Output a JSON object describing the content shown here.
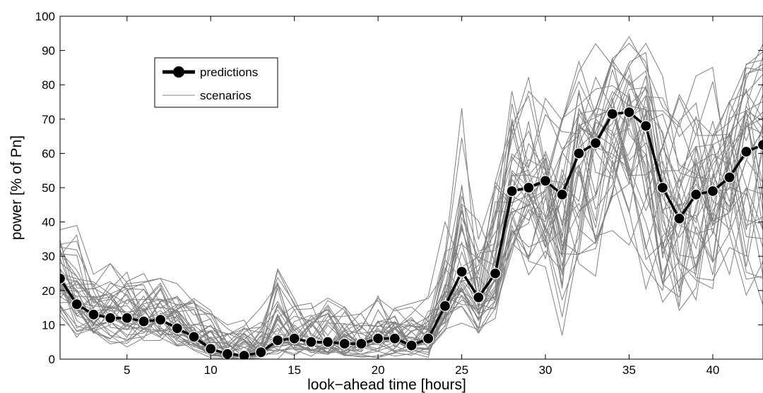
{
  "chart_data": {
    "type": "line",
    "xlabel": "look−ahead time [hours]",
    "ylabel": "power [% of Pn]",
    "xlim": [
      1,
      43
    ],
    "ylim": [
      0,
      100
    ],
    "xticks": [
      5,
      10,
      15,
      20,
      25,
      30,
      35,
      40
    ],
    "yticks": [
      0,
      10,
      20,
      30,
      40,
      50,
      60,
      70,
      80,
      90,
      100
    ],
    "grid": false,
    "legend_position": "top-left",
    "series": [
      {
        "name": "predictions",
        "style": "thick black line with filled circle markers",
        "color": "#000000",
        "x": [
          1,
          2,
          3,
          4,
          5,
          6,
          7,
          8,
          9,
          10,
          11,
          12,
          13,
          14,
          15,
          16,
          17,
          18,
          19,
          20,
          21,
          22,
          23,
          24,
          25,
          26,
          27,
          28,
          29,
          30,
          31,
          32,
          33,
          34,
          35,
          36,
          37,
          38,
          39,
          40,
          41,
          42,
          43
        ],
        "values": [
          23.5,
          16,
          13,
          12,
          12,
          11,
          11.5,
          9,
          6.5,
          3,
          1.5,
          1,
          2,
          5.5,
          6,
          5,
          5,
          4.5,
          4.5,
          6,
          6,
          4,
          6,
          15.5,
          25.5,
          18,
          25,
          49,
          50,
          52,
          48,
          60,
          63,
          71.5,
          72,
          68,
          50,
          41,
          48,
          49,
          53,
          60.5,
          62.5
        ]
      },
      {
        "name": "scenarios",
        "style": "thin gray lines (ensemble of many scenarios)",
        "color": "#808080",
        "x": [
          1,
          2,
          3,
          4,
          5,
          6,
          7,
          8,
          9,
          10,
          11,
          12,
          13,
          14,
          15,
          16,
          17,
          18,
          19,
          20,
          21,
          22,
          23,
          24,
          25,
          26,
          27,
          28,
          29,
          30,
          31,
          32,
          33,
          34,
          35,
          36,
          37,
          38,
          39,
          40,
          41,
          42,
          43
        ],
        "envelope_low": [
          10,
          5,
          5,
          3,
          3,
          3,
          2,
          2,
          1,
          0,
          0,
          0,
          0,
          0,
          0,
          0,
          0,
          0,
          0,
          0,
          0,
          0,
          0,
          5,
          8,
          5,
          10,
          25,
          20,
          20,
          1,
          10,
          20,
          30,
          30,
          20,
          10,
          4,
          5,
          10,
          15,
          5,
          5
        ],
        "envelope_high": [
          38,
          39,
          25,
          28,
          27,
          25,
          24,
          22,
          20,
          15,
          12,
          12,
          15,
          37,
          20,
          18,
          20,
          18,
          17,
          22,
          20,
          18,
          20,
          40,
          76,
          50,
          65,
          85,
          88,
          88,
          85,
          91,
          92,
          93,
          95,
          94,
          85,
          85,
          90,
          95,
          90,
          95,
          95
        ]
      }
    ]
  }
}
